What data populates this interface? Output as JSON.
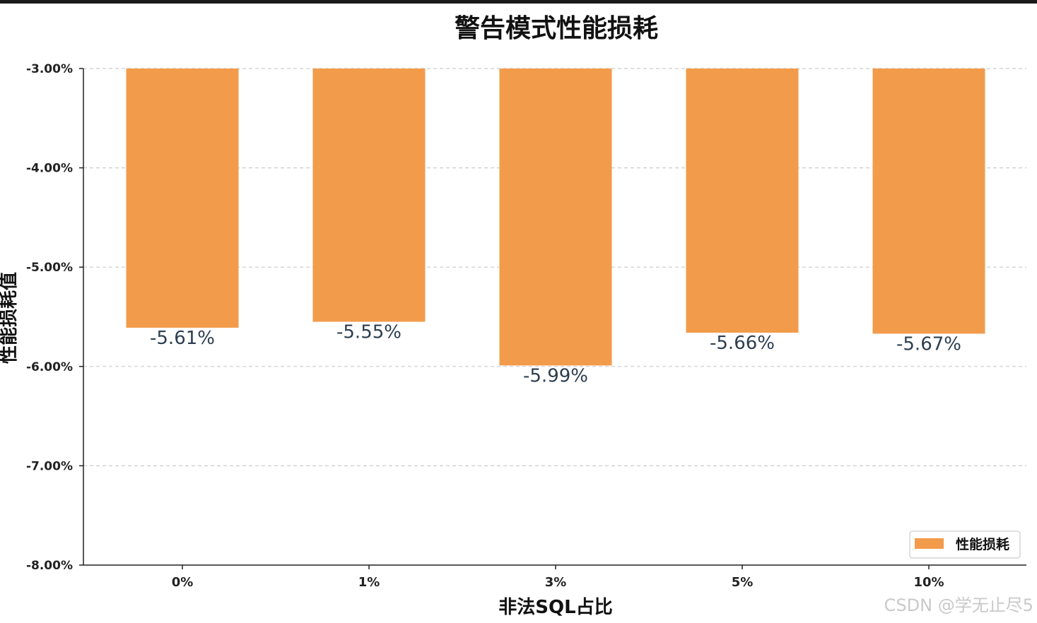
{
  "chart_data": {
    "type": "bar",
    "title": "警告模式性能损耗",
    "xlabel": "非法SQL占比",
    "ylabel": "性能损耗值",
    "categories": [
      "0%",
      "1%",
      "3%",
      "5%",
      "10%"
    ],
    "series": [
      {
        "name": "性能损耗",
        "values": [
          -5.61,
          -5.55,
          -5.99,
          -5.66,
          -5.67
        ],
        "color": "#f29b4b"
      }
    ],
    "data_labels": [
      "-5.61%",
      "-5.55%",
      "-5.99%",
      "-5.66%",
      "-5.67%"
    ],
    "yticks": [
      -3.0,
      -4.0,
      -5.0,
      -6.0,
      -7.0,
      -8.0
    ],
    "ytick_labels": [
      "-3.00%",
      "-4.00%",
      "-5.00%",
      "-6.00%",
      "-7.00%",
      "-8.00%"
    ],
    "ylim": [
      -8.0,
      -3.0
    ],
    "grid": "horizontal-dashed",
    "legend_position": "bottom-right"
  },
  "watermark": "CSDN @学无止尽5"
}
